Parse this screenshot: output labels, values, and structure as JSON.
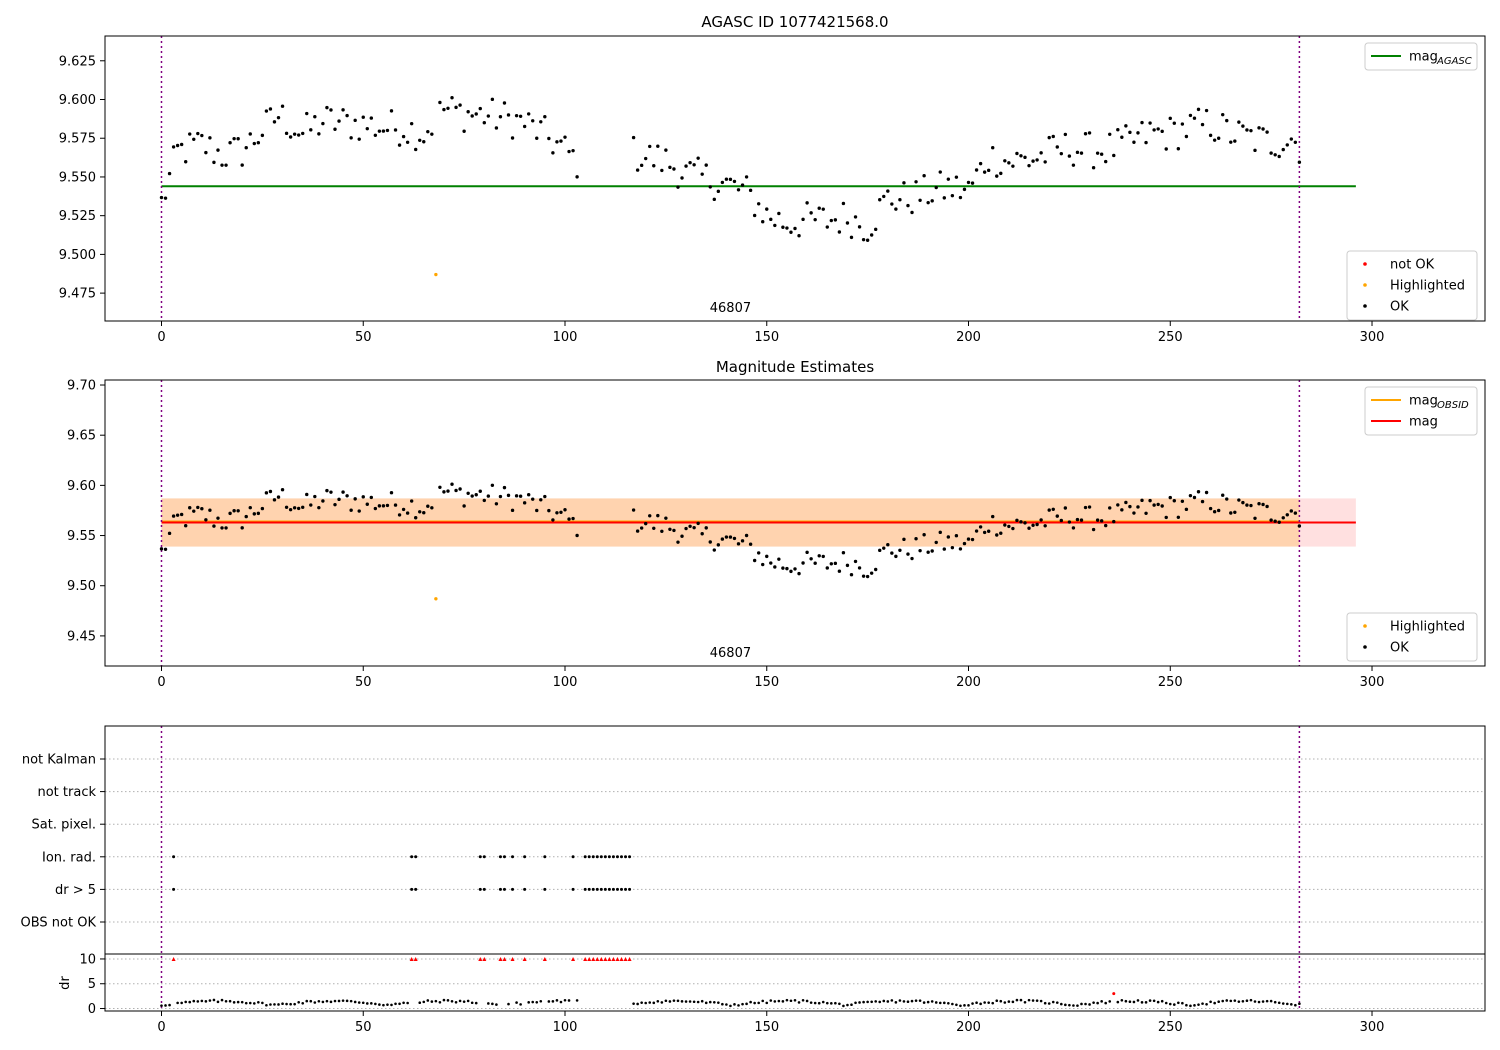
{
  "chart_data": [
    {
      "type": "scatter",
      "title": "AGASC ID 1077421568.0",
      "xlim": [
        -14,
        328
      ],
      "ylim": [
        9.457,
        9.641
      ],
      "xticks": [
        0,
        50,
        100,
        150,
        200,
        250,
        300
      ],
      "yticks": [
        9.475,
        9.5,
        9.525,
        9.55,
        9.575,
        9.6,
        9.625
      ],
      "ytick_labels": [
        "9.475",
        "9.500",
        "9.525",
        "9.550",
        "9.575",
        "9.600",
        "9.625"
      ],
      "obsid_bounds": [
        0,
        282
      ],
      "obsid_label": "46807",
      "obsid_label_x": 141,
      "hlines": [
        {
          "name": "mag_AGASC",
          "label_main": "mag",
          "label_sub": "AGASC",
          "y": 9.544,
          "x0": 0,
          "x1": 296,
          "color": "#008000"
        }
      ],
      "series": [
        {
          "name": "OK",
          "color": "#000000",
          "anchors": [
            [
              0,
              9.533
            ],
            [
              2,
              9.549
            ],
            [
              4,
              9.566
            ],
            [
              10,
              9.571
            ],
            [
              15,
              9.564
            ],
            [
              20,
              9.567
            ],
            [
              25,
              9.58
            ],
            [
              29,
              9.59
            ],
            [
              35,
              9.578
            ],
            [
              40,
              9.586
            ],
            [
              45,
              9.585
            ],
            [
              50,
              9.584
            ],
            [
              55,
              9.582
            ],
            [
              60,
              9.582
            ],
            [
              65,
              9.578
            ],
            [
              70,
              9.594
            ],
            [
              75,
              9.591
            ],
            [
              80,
              9.59
            ],
            [
              85,
              9.588
            ],
            [
              90,
              9.585
            ],
            [
              95,
              9.577
            ],
            [
              100,
              9.567
            ],
            [
              103,
              9.56
            ],
            [
              117,
              9.565
            ],
            [
              120,
              9.563
            ],
            [
              125,
              9.56
            ],
            [
              130,
              9.552
            ],
            [
              135,
              9.549
            ],
            [
              140,
              9.545
            ],
            [
              145,
              9.54
            ],
            [
              150,
              9.525
            ],
            [
              155,
              9.52
            ],
            [
              160,
              9.522
            ],
            [
              165,
              9.522
            ],
            [
              170,
              9.524
            ],
            [
              175,
              9.518
            ],
            [
              180,
              9.536
            ],
            [
              185,
              9.536
            ],
            [
              190,
              9.54
            ],
            [
              195,
              9.543
            ],
            [
              200,
              9.541
            ],
            [
              205,
              9.563
            ],
            [
              210,
              9.56
            ],
            [
              215,
              9.561
            ],
            [
              220,
              9.565
            ],
            [
              225,
              9.569
            ],
            [
              230,
              9.567
            ],
            [
              235,
              9.568
            ],
            [
              240,
              9.572
            ],
            [
              245,
              9.578
            ],
            [
              250,
              9.578
            ],
            [
              255,
              9.582
            ],
            [
              260,
              9.584
            ],
            [
              265,
              9.578
            ],
            [
              270,
              9.575
            ],
            [
              275,
              9.572
            ],
            [
              280,
              9.575
            ],
            [
              282,
              9.57
            ]
          ]
        },
        {
          "name": "Highlighted",
          "color": "#FFA500",
          "points": [
            [
              68,
              9.487
            ]
          ]
        },
        {
          "name": "not OK",
          "color": "#FF0000",
          "points": []
        }
      ],
      "legend_upper": {
        "placement": "top-right",
        "entries": [
          {
            "main": "mag",
            "sub": "AGASC",
            "color": "#008000"
          }
        ]
      },
      "legend_lower": {
        "placement": "bottom-right",
        "entries": [
          {
            "label": "not OK",
            "color": "#FF0000"
          },
          {
            "label": "Highlighted",
            "color": "#FFA500"
          },
          {
            "label": "OK",
            "color": "#000000"
          }
        ]
      }
    },
    {
      "type": "scatter",
      "title": "Magnitude Estimates",
      "xlim": [
        -14,
        328
      ],
      "ylim": [
        9.42,
        9.705
      ],
      "xticks": [
        0,
        50,
        100,
        150,
        200,
        250,
        300
      ],
      "yticks": [
        9.45,
        9.5,
        9.55,
        9.6,
        9.65,
        9.7
      ],
      "ytick_labels": [
        "9.45",
        "9.50",
        "9.55",
        "9.60",
        "9.65",
        "9.70"
      ],
      "obsid_bounds": [
        0,
        282
      ],
      "obsid_label": "46807",
      "obsid_label_x": 141,
      "bands": [
        {
          "y0": 9.539,
          "y1": 9.587,
          "x0": 0,
          "x1": 296,
          "color": "#FF0000",
          "opacity": 0.12
        },
        {
          "y0": 9.539,
          "y1": 9.587,
          "x0": 0,
          "x1": 282,
          "color": "#FFA500",
          "opacity": 0.22
        }
      ],
      "hlines": [
        {
          "name": "mag_OBSID",
          "y": 9.564,
          "x0": 0,
          "x1": 282,
          "color": "#FFA500"
        },
        {
          "name": "mag",
          "y": 9.563,
          "x0": 0,
          "x1": 296,
          "color": "#FF0000"
        }
      ],
      "legend_upper": {
        "placement": "top-right",
        "entries": [
          {
            "main": "mag",
            "sub": "OBSID",
            "color": "#FFA500"
          },
          {
            "main": "mag",
            "sub": "",
            "color": "#FF0000"
          }
        ]
      },
      "legend_lower": {
        "placement": "bottom-right",
        "entries": [
          {
            "label": "Highlighted",
            "color": "#FFA500"
          },
          {
            "label": "OK",
            "color": "#000000"
          }
        ]
      }
    },
    {
      "type": "scatter",
      "xlim": [
        -14,
        328
      ],
      "xticks": [
        0,
        50,
        100,
        150,
        200,
        250,
        300
      ],
      "obsid_bounds": [
        0,
        282
      ],
      "flag_rows": [
        "not Kalman",
        "not track",
        "Sat. pixel.",
        "Ion. rad.",
        "dr > 5",
        "OBS not OK"
      ],
      "flag_points": {
        "Ion. rad.": [
          3,
          62,
          63,
          79,
          80,
          84,
          85,
          87,
          90,
          95,
          102,
          105,
          106,
          107,
          108,
          109,
          110,
          111,
          112,
          113,
          114,
          115,
          116
        ],
        "dr > 5": [
          3,
          62,
          63,
          79,
          80,
          84,
          85,
          87,
          90,
          95,
          102,
          105,
          106,
          107,
          108,
          109,
          110,
          111,
          112,
          113,
          114,
          115,
          116
        ]
      },
      "dr_ylabel": "dr",
      "dr_ylim": [
        -0.5,
        11
      ],
      "dr_yticks": [
        0,
        5,
        10
      ],
      "dr_ytick_labels": [
        "0",
        "5",
        "10"
      ],
      "dr_clipped_red": [
        3,
        62,
        63,
        79,
        80,
        84,
        85,
        87,
        90,
        95,
        102,
        105,
        106,
        107,
        108,
        109,
        110,
        111,
        112,
        113,
        114,
        115,
        116
      ],
      "dr_red_points": [
        [
          236,
          3.0
        ]
      ],
      "dr_gap": [
        104,
        117
      ]
    }
  ]
}
